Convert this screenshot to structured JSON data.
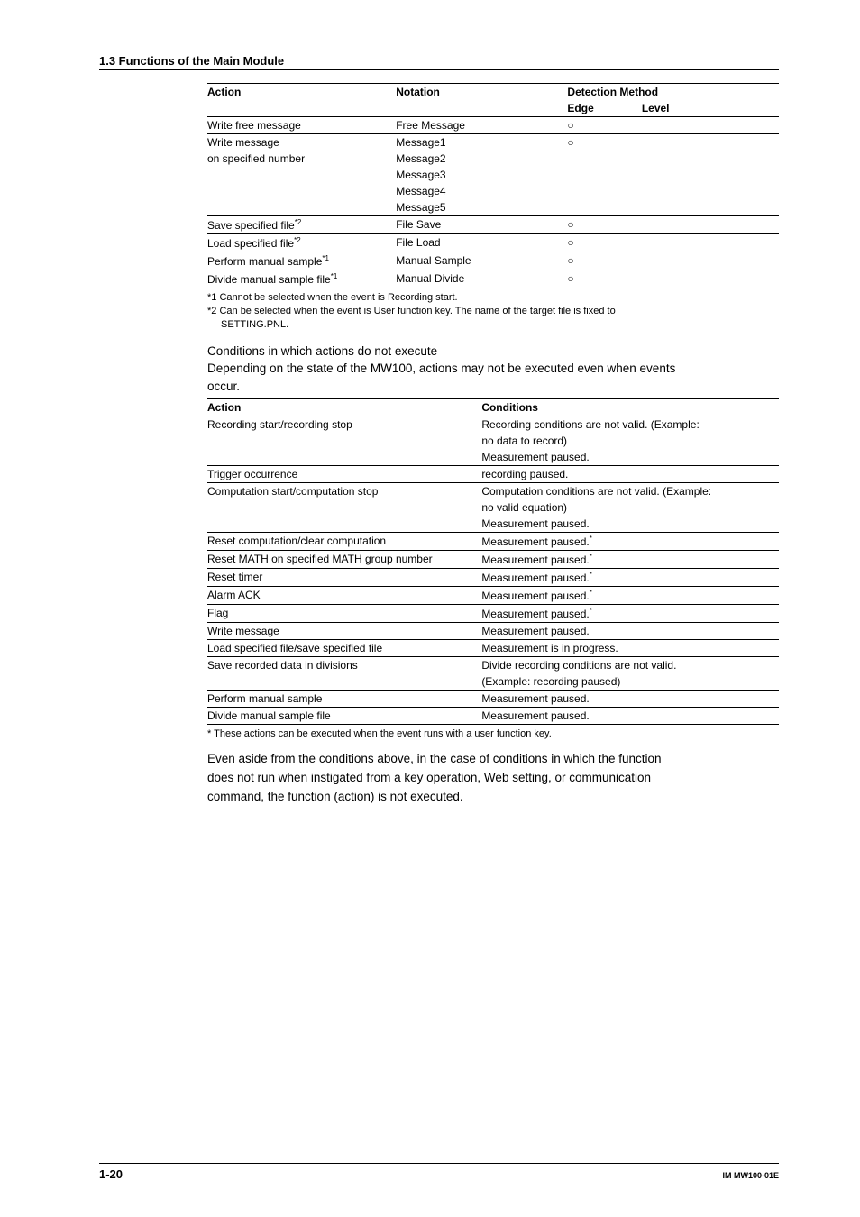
{
  "section_title": "1.3  Functions of the Main Module",
  "table1": {
    "headers": {
      "action": "Action",
      "notation": "Notation",
      "detection": "Detection Method",
      "edge": "Edge",
      "level": "Level"
    },
    "rows": [
      {
        "action": "Write free message",
        "notation": "Free Message",
        "edge": "○",
        "level": "",
        "sep": true
      },
      {
        "action": "Write message",
        "notation": "Message1",
        "edge": "○",
        "level": "",
        "sep": true
      },
      {
        "action": "on specified number",
        "notation": "Message2",
        "edge": "",
        "level": ""
      },
      {
        "action": "",
        "notation": "Message3",
        "edge": "",
        "level": ""
      },
      {
        "action": "",
        "notation": "Message4",
        "edge": "",
        "level": ""
      },
      {
        "action": "",
        "notation": "Message5",
        "edge": "",
        "level": ""
      },
      {
        "action": "Save specified file",
        "sup": "*2",
        "notation": "File Save",
        "edge": "○",
        "level": "",
        "sep": true
      },
      {
        "action": "Load specified file",
        "sup": "*2",
        "notation": "File Load",
        "edge": "○",
        "level": "",
        "sep": true
      },
      {
        "action": "Perform manual sample",
        "sup": "*1",
        "notation": "Manual Sample",
        "edge": "○",
        "level": "",
        "sep": true
      },
      {
        "action": "Divide manual sample file",
        "sup": "*1",
        "notation": "Manual Divide",
        "edge": "○",
        "level": "",
        "sep": true,
        "last": true
      }
    ]
  },
  "footnotes1": {
    "f1": "*1  Cannot be selected when the event is Recording start.",
    "f2a": "*2  Can be selected when the event is User function key. The name of the target file is fixed to",
    "f2b": "SETTING.PNL."
  },
  "mid": {
    "sub": "Conditions in which actions do not execute",
    "p1": "Depending on the state of the MW100, actions may not be executed even when events",
    "p2": "occur."
  },
  "table2": {
    "headers": {
      "action": "Action",
      "cond": "Conditions"
    },
    "rows": [
      {
        "a": "Recording start/recording stop",
        "c": "Recording conditions are not valid. (Example:",
        "sep": true
      },
      {
        "a": "",
        "c": "no data to record)"
      },
      {
        "a": "",
        "c": "Measurement paused."
      },
      {
        "a": "Trigger occurrence",
        "c": "recording paused.",
        "sep": true
      },
      {
        "a": "Computation start/computation stop",
        "c": "Computation conditions are not valid. (Example:",
        "sep": true
      },
      {
        "a": "",
        "c": "no valid equation)"
      },
      {
        "a": "",
        "c": "Measurement paused."
      },
      {
        "a": "Reset computation/clear computation",
        "c": "Measurement paused.",
        "sup": "*",
        "sep": true
      },
      {
        "a": "Reset MATH on specified MATH group number",
        "c": "Measurement paused.",
        "sup": "*",
        "sep": true
      },
      {
        "a": "Reset timer",
        "c": "Measurement paused.",
        "sup": "*",
        "sep": true
      },
      {
        "a": "Alarm ACK",
        "c": "Measurement paused.",
        "sup": "*",
        "sep": true
      },
      {
        "a": "Flag",
        "c": "Measurement paused.",
        "sup": "*",
        "sep": true
      },
      {
        "a": "Write message",
        "c": "Measurement paused.",
        "sep": true
      },
      {
        "a": "Load specified file/save specified file",
        "c": "Measurement is in progress.",
        "sep": true
      },
      {
        "a": "Save recorded data in divisions",
        "c": "Divide recording conditions are not valid.",
        "sep": true
      },
      {
        "a": "",
        "c": "(Example: recording paused)"
      },
      {
        "a": "Perform manual sample",
        "c": "Measurement paused.",
        "sep": true
      },
      {
        "a": "Divide manual sample file",
        "c": "Measurement paused.",
        "sep": true,
        "last": true
      }
    ]
  },
  "footnotes2": "*  These actions can be executed when the event runs with a user function key.",
  "tail": {
    "p1": "Even aside from the conditions above, in the case of conditions in which the function",
    "p2": "does not run when instigated from a key operation, Web setting, or communication",
    "p3": "command, the function (action) is not executed."
  },
  "footer": {
    "page": "1-20",
    "doc": "IM MW100-01E"
  }
}
